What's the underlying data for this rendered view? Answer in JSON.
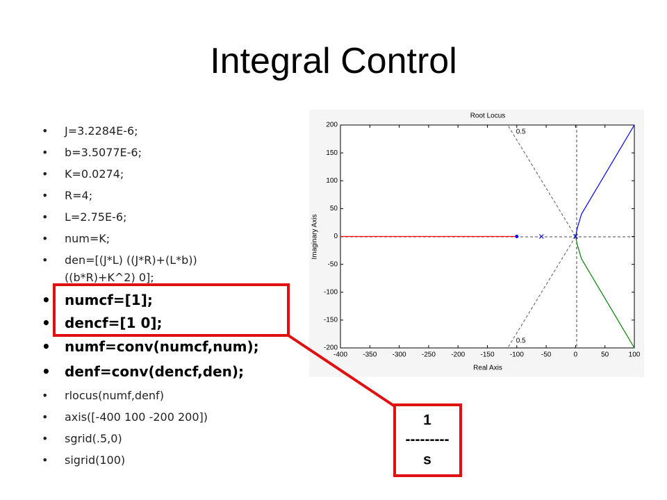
{
  "slide": {
    "title": "Integral Control",
    "bullets": [
      "J=3.2284E-6;",
      "b=3.5077E-6;",
      "K=0.0274;",
      "R=4;",
      "L=2.75E-6;",
      "num=K;",
      "den=[(J*L) ((J*R)+(L*b)) ((b*R)+K^2) 0];",
      "numcf=[1];",
      "dencf=[1 0];",
      "numf=conv(numcf,num);",
      "denf=conv(dencf,den);",
      "rlocus(numf,denf)",
      "axis([-400 100 -200 200])",
      "sgrid(.5,0)",
      "sigrid(100)"
    ],
    "callout": [
      "1",
      "---------",
      "s"
    ]
  },
  "chart_data": {
    "type": "line",
    "title": "Root Locus",
    "xlabel": "Real Axis",
    "ylabel": "Imaginary Axis",
    "xlim": [
      -400,
      100
    ],
    "ylim": [
      -200,
      200
    ],
    "xticks": [
      -400,
      -350,
      -300,
      -250,
      -200,
      -150,
      -100,
      -50,
      0,
      50,
      100
    ],
    "yticks": [
      -200,
      -150,
      -100,
      -50,
      0,
      50,
      100,
      150,
      200
    ],
    "damping": [
      0.5
    ],
    "series": [
      {
        "color": "#ff0000",
        "x": [
          -400,
          -100
        ],
        "values": [
          0,
          0
        ]
      },
      {
        "color": "#0000ff",
        "x": [
          0,
          3,
          10,
          100
        ],
        "values": [
          0,
          15,
          40,
          200
        ]
      },
      {
        "color": "#008000",
        "x": [
          0,
          3,
          10,
          100
        ],
        "values": [
          0,
          -15,
          -40,
          -200
        ]
      },
      {
        "color": "#0000ff",
        "marker": "dot",
        "x": [
          -100
        ],
        "values": [
          0
        ]
      },
      {
        "color": "#0000ff",
        "marker": "x",
        "x": [
          -58,
          0
        ],
        "values": [
          0,
          0
        ]
      }
    ]
  }
}
